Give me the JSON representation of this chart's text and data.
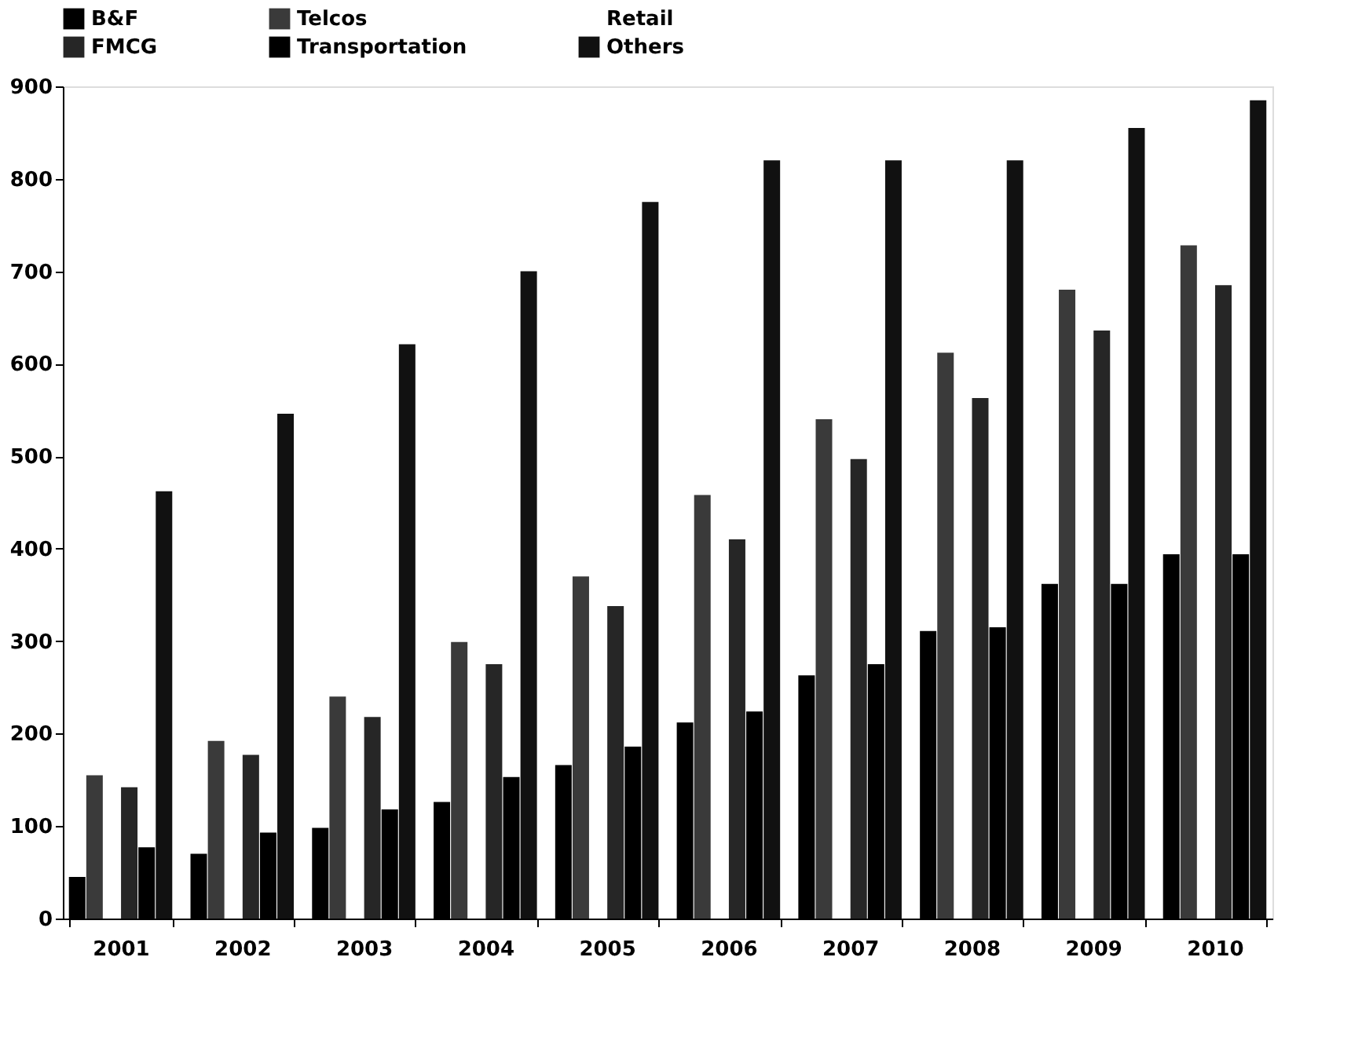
{
  "chart_data": {
    "type": "bar",
    "categories": [
      "2001",
      "2002",
      "2003",
      "2004",
      "2005",
      "2006",
      "2007",
      "2008",
      "2009",
      "2010"
    ],
    "series": [
      {
        "name": "B&F",
        "color": "#000000",
        "values": [
          45,
          70,
          98,
          126,
          166,
          212,
          263,
          311,
          362,
          394
        ]
      },
      {
        "name": "Telcos",
        "color": "#3a3a3a",
        "values": [
          155,
          192,
          240,
          299,
          370,
          458,
          540,
          612,
          680,
          728
        ]
      },
      {
        "name": "Retail",
        "values": [
          null,
          null,
          null,
          null,
          null,
          null,
          null,
          null,
          null,
          null
        ]
      },
      {
        "name": "FMCG",
        "color": "#262626",
        "values": [
          142,
          177,
          218,
          275,
          338,
          410,
          497,
          563,
          636,
          685
        ]
      },
      {
        "name": "Transportation",
        "color": "#000000",
        "values": [
          77,
          93,
          118,
          153,
          186,
          224,
          275,
          315,
          362,
          394
        ]
      },
      {
        "name": "Others",
        "color": "#111111",
        "values": [
          462,
          546,
          621,
          700,
          775,
          820,
          820,
          820,
          855,
          885
        ]
      }
    ],
    "ylim": [
      0,
      900
    ],
    "yticks": [
      0,
      100,
      200,
      300,
      400,
      500,
      600,
      700,
      800,
      900
    ],
    "grid": false,
    "legend": "top"
  }
}
